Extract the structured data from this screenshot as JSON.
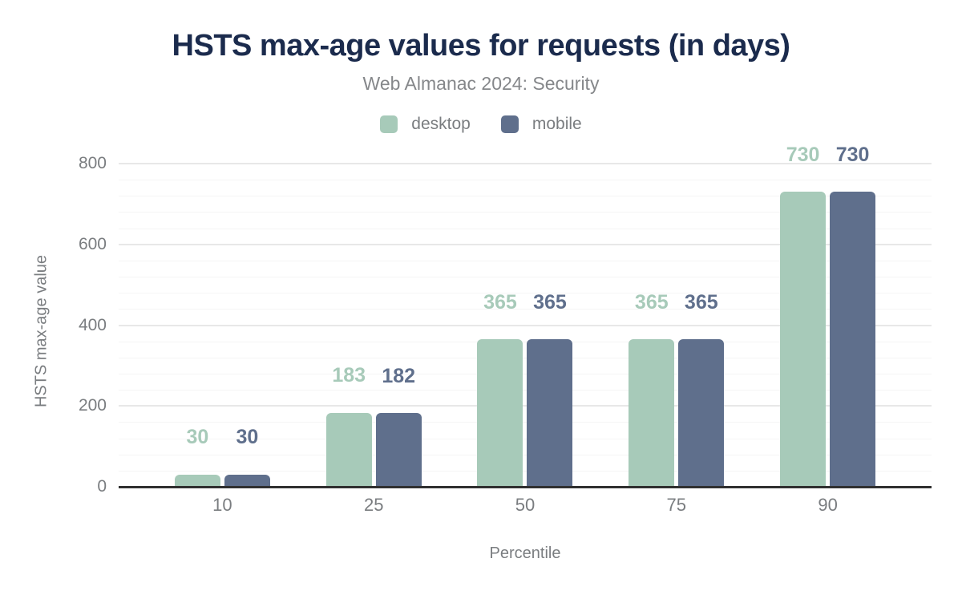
{
  "chart_data": {
    "type": "bar",
    "title": "HSTS max-age values for requests (in days)",
    "subtitle": "Web Almanac 2024: Security",
    "xlabel": "Percentile",
    "ylabel": "HSTS max-age value",
    "categories": [
      "10",
      "25",
      "50",
      "75",
      "90"
    ],
    "series": [
      {
        "name": "desktop",
        "color": "#a7cab9",
        "values": [
          30,
          183,
          365,
          365,
          730
        ]
      },
      {
        "name": "mobile",
        "color": "#5f6f8c",
        "values": [
          30,
          182,
          365,
          365,
          730
        ]
      }
    ],
    "ylim": [
      0,
      800
    ],
    "y_major_ticks": [
      0,
      200,
      400,
      600,
      800
    ],
    "y_minor_step": 40,
    "grid": "horizontal-only",
    "legend_position": "top",
    "data_labels": "above-bars"
  },
  "colors": {
    "title": "#1b2b4d",
    "subtitle": "#85878a",
    "axis_text": "#7a7d80",
    "axis_line": "#303030",
    "grid_major": "#e8e8e8",
    "grid_minor": "#f5f5f5",
    "background": "#ffffff"
  }
}
